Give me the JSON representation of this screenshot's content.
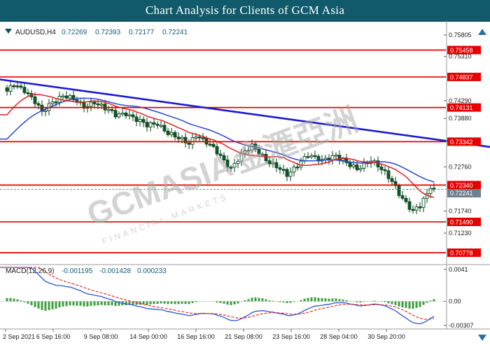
{
  "title_bar": {
    "title": "Chart Analysis for Clients of GCM Asia"
  },
  "instrument": {
    "symbol": "AUDUSD,H4",
    "open": "0.72269",
    "high": "0.72393",
    "low": "0.72177",
    "close": "0.72241"
  },
  "macd_panel": {
    "label": "MACD(12,26,9)",
    "main_value": "-0.001195",
    "signal_value": "-0.001428",
    "osma_value": "0.000233"
  },
  "watermark": {
    "brand": "GCMASIA",
    "brand_cjk": "金滙亞洲",
    "subtitle": "FINANCIAL MARKETS"
  },
  "colors": {
    "title_bg": "#105a6b",
    "level_line": "#e60000",
    "trendline": "#1a1acd",
    "candle_up_fill": "#eaf6ec",
    "candle_down_fill": "#0f5a28",
    "candle_border": "#063d18",
    "ma_fast": "#dd2222",
    "ma_slow": "#2848c8",
    "macd_hist": "#3c9e3c",
    "macd_main": "#2e54d4",
    "macd_signal": "#e02020",
    "axis_text": "#1a1a1a",
    "bid_box": "#708090"
  },
  "chart_data": [
    {
      "type": "candlestick",
      "symbol": "AUDUSD",
      "timeframe": "H4",
      "y_axis": {
        "min": 0.706,
        "max": 0.76,
        "tick_values": [
          0.75805,
          0.7531,
          0.7429,
          0.7388,
          0.7276,
          0.7174,
          0.7123
        ]
      },
      "x_tick_labels": [
        "2 Sep 2021",
        "6 Sep 16:00",
        "9 Sep 08:00",
        "14 Sep 00:00",
        "16 Sep 16:00",
        "21 Sep 08:00",
        "23 Sep 16:00",
        "28 Sep 04:00",
        "30 Sep 20:00"
      ],
      "horizontal_levels": [
        0.75458,
        0.74837,
        0.74131,
        0.73342,
        0.7234,
        0.7149,
        0.70778
      ],
      "trendline": {
        "start_price": 0.7478,
        "end_price": 0.7322
      },
      "current_price": 0.72241,
      "last_candle_ohlc": [
        0.72269,
        0.72393,
        0.72177,
        0.72241
      ],
      "bars_total": 123,
      "close_waypoints": [
        [
          0,
          0.7448
        ],
        [
          2,
          0.7468
        ],
        [
          5,
          0.7455
        ],
        [
          8,
          0.7425
        ],
        [
          10,
          0.74
        ],
        [
          13,
          0.7428
        ],
        [
          16,
          0.7442
        ],
        [
          19,
          0.743
        ],
        [
          22,
          0.7415
        ],
        [
          25,
          0.7428
        ],
        [
          28,
          0.741
        ],
        [
          31,
          0.7395
        ],
        [
          34,
          0.7402
        ],
        [
          37,
          0.7385
        ],
        [
          40,
          0.737
        ],
        [
          43,
          0.7378
        ],
        [
          46,
          0.7355
        ],
        [
          49,
          0.734
        ],
        [
          52,
          0.733
        ],
        [
          54,
          0.7352
        ],
        [
          56,
          0.734
        ],
        [
          58,
          0.7325
        ],
        [
          60,
          0.7308
        ],
        [
          62,
          0.729
        ],
        [
          64,
          0.7275
        ],
        [
          66,
          0.7295
        ],
        [
          68,
          0.731
        ],
        [
          70,
          0.7322
        ],
        [
          72,
          0.731
        ],
        [
          74,
          0.7295
        ],
        [
          76,
          0.7282
        ],
        [
          78,
          0.727
        ],
        [
          80,
          0.7255
        ],
        [
          82,
          0.7272
        ],
        [
          84,
          0.7292
        ],
        [
          86,
          0.7305
        ],
        [
          88,
          0.7295
        ],
        [
          90,
          0.7288
        ],
        [
          92,
          0.7298
        ],
        [
          94,
          0.7305
        ],
        [
          96,
          0.7292
        ],
        [
          98,
          0.7278
        ],
        [
          100,
          0.7268
        ],
        [
          102,
          0.7282
        ],
        [
          104,
          0.7295
        ],
        [
          106,
          0.728
        ],
        [
          108,
          0.726
        ],
        [
          110,
          0.724
        ],
        [
          112,
          0.7215
        ],
        [
          114,
          0.7195
        ],
        [
          116,
          0.7175
        ],
        [
          118,
          0.7185
        ],
        [
          120,
          0.721
        ],
        [
          121,
          0.723
        ],
        [
          122,
          0.72241
        ]
      ],
      "moving_averages": [
        {
          "name": "fast",
          "period": 13
        },
        {
          "name": "slow",
          "period": 26
        }
      ]
    },
    {
      "type": "macd",
      "params": [
        12,
        26,
        9
      ],
      "latest": {
        "main": -0.001195,
        "signal": -0.001428,
        "osma": 0.000233
      },
      "y_axis": {
        "min": -0.00318,
        "max": 0.00435,
        "tick_labels": [
          "0.0041",
          "0.00",
          "-0.00307"
        ]
      }
    }
  ]
}
